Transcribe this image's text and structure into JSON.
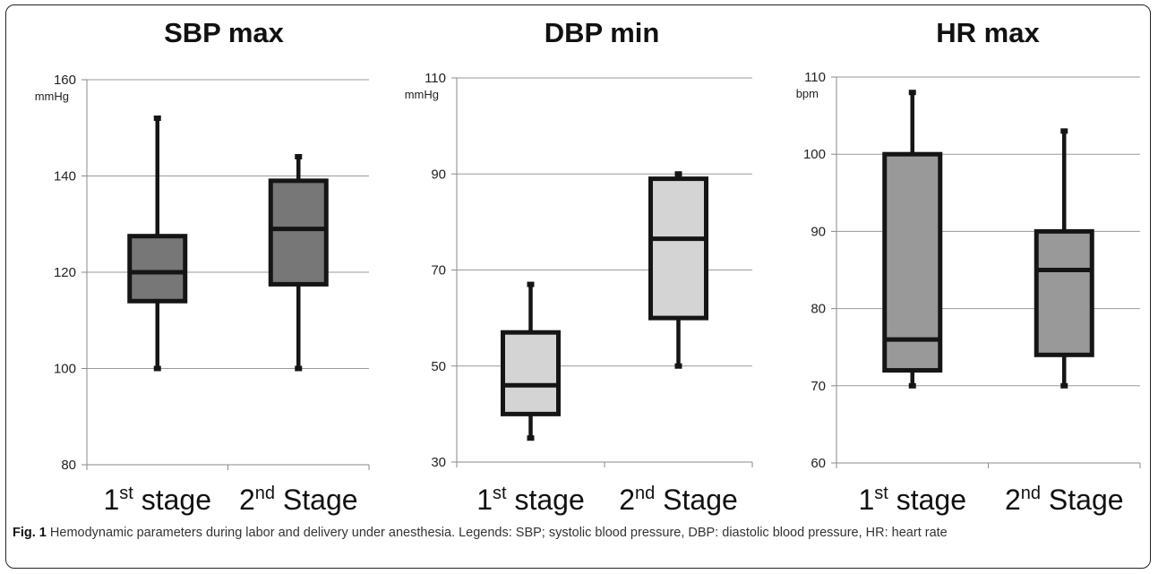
{
  "caption": {
    "label": "Fig. 1",
    "text": "Hemodynamic parameters during labor and delivery under anesthesia. Legends: SBP; systolic blood pressure, DBP: diastolic blood pressure, HR: heart rate"
  },
  "chart_data": [
    {
      "type": "box",
      "title": "SBP max",
      "unit": "mmHg",
      "ylim": [
        80,
        160
      ],
      "yticks": [
        80,
        100,
        120,
        140,
        160
      ],
      "grid": true,
      "fill": "#777777",
      "categories": [
        {
          "base": "1",
          "sup": "st",
          "rest": " stage"
        },
        {
          "base": "2",
          "sup": "nd",
          "rest": " Stage"
        }
      ],
      "boxes": [
        {
          "min": 100,
          "q1": 114,
          "median": 120,
          "q3": 127.5,
          "max": 152
        },
        {
          "min": 100,
          "q1": 117.5,
          "median": 129,
          "q3": 139,
          "max": 144
        }
      ]
    },
    {
      "type": "box",
      "title": "DBP min",
      "unit": "mmHg",
      "ylim": [
        30,
        110
      ],
      "yticks": [
        30,
        50,
        70,
        90,
        110
      ],
      "grid": true,
      "fill": "#d4d4d4",
      "categories": [
        {
          "base": "1",
          "sup": "st",
          "rest": " stage"
        },
        {
          "base": "2",
          "sup": "nd",
          "rest": " Stage"
        }
      ],
      "boxes": [
        {
          "min": 35,
          "q1": 40,
          "median": 46,
          "q3": 57,
          "max": 67
        },
        {
          "min": 50,
          "q1": 60,
          "median": 76.5,
          "q3": 89,
          "max": 90
        }
      ]
    },
    {
      "type": "box",
      "title": "HR max",
      "unit": "bpm",
      "ylim": [
        60,
        110
      ],
      "yticks": [
        60,
        70,
        80,
        90,
        100,
        110
      ],
      "grid": true,
      "fill": "#999999",
      "categories": [
        {
          "base": "1",
          "sup": "st",
          "rest": " stage"
        },
        {
          "base": "2",
          "sup": "nd",
          "rest": " Stage"
        }
      ],
      "boxes": [
        {
          "min": 70,
          "q1": 72,
          "median": 76,
          "q3": 100,
          "max": 108
        },
        {
          "min": 70,
          "q1": 74,
          "median": 85,
          "q3": 90,
          "max": 103
        }
      ]
    }
  ]
}
